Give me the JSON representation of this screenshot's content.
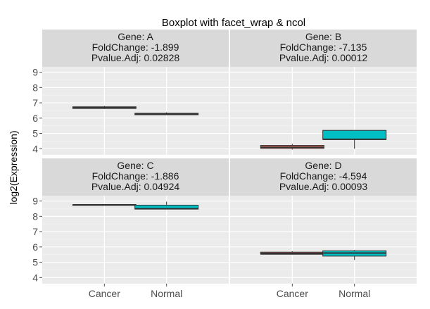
{
  "chart_data": {
    "type": "boxplot",
    "title": "Boxplot with facet_wrap & ncol",
    "xlabel": "",
    "ylabel": "log2(Expression)",
    "categories": [
      "Cancer",
      "Normal"
    ],
    "ylim": [
      3.6,
      9.35
    ],
    "yticks": [
      4,
      5,
      6,
      7,
      8,
      9
    ],
    "ncol": 2,
    "grid": true,
    "colors": {
      "Cancer": "#F8766D",
      "Normal": "#00BFC4"
    },
    "panels": [
      {
        "strip": [
          "Gene: A",
          "FoldChange: -1.899",
          "Pvalue.Adj: 0.02828"
        ],
        "boxes": [
          {
            "category": "Cancer",
            "min": 6.6,
            "q1": 6.63,
            "median": 6.68,
            "q3": 6.74,
            "max": 6.8
          },
          {
            "category": "Normal",
            "min": 6.2,
            "q1": 6.22,
            "median": 6.27,
            "q3": 6.32,
            "max": 6.38
          }
        ]
      },
      {
        "strip": [
          "Gene: B",
          "FoldChange: -7.135",
          "Pvalue.Adj: 0.00012"
        ],
        "boxes": [
          {
            "category": "Cancer",
            "min": 3.95,
            "q1": 4.02,
            "median": 4.1,
            "q3": 4.22,
            "max": 4.32
          },
          {
            "category": "Normal",
            "min": 4.0,
            "q1": 4.6,
            "median": 4.62,
            "q3": 5.2,
            "max": 5.2
          }
        ]
      },
      {
        "strip": [
          "Gene: C",
          "FoldChange: -1.886",
          "Pvalue.Adj: 0.04924"
        ],
        "boxes": [
          {
            "category": "Cancer",
            "min": 8.75,
            "q1": 8.75,
            "median": 8.75,
            "q3": 8.76,
            "max": 8.76
          },
          {
            "category": "Normal",
            "min": 8.45,
            "q1": 8.47,
            "median": 8.5,
            "q3": 8.73,
            "max": 8.96
          }
        ]
      },
      {
        "strip": [
          "Gene: D",
          "FoldChange: -4.594",
          "Pvalue.Adj: 0.00093"
        ],
        "boxes": [
          {
            "category": "Cancer",
            "min": 5.5,
            "q1": 5.52,
            "median": 5.58,
            "q3": 5.66,
            "max": 5.72
          },
          {
            "category": "Normal",
            "min": 5.15,
            "q1": 5.4,
            "median": 5.6,
            "q3": 5.75,
            "max": 5.8
          }
        ]
      }
    ]
  }
}
